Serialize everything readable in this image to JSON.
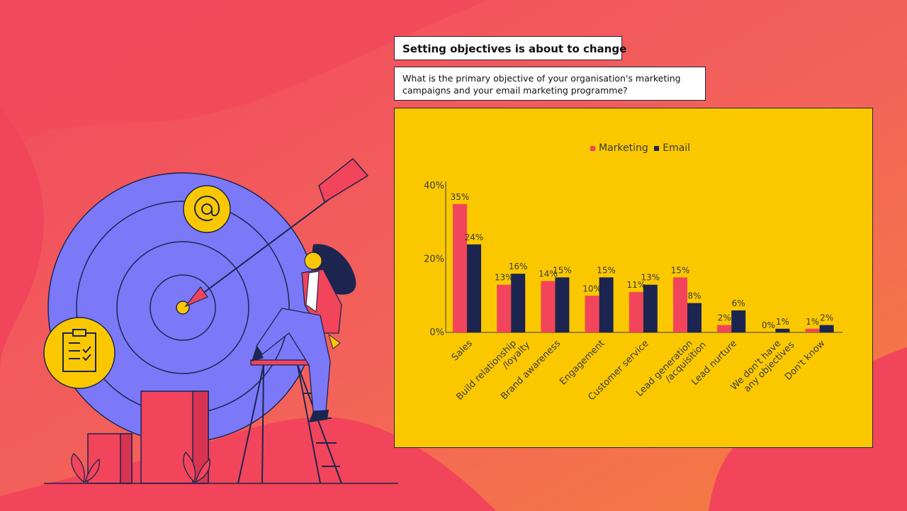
{
  "header": {
    "title": "Setting objectives is about to change",
    "question_line1": "What is the primary objective of your organisation's marketing",
    "question_line2": "campaigns and your email marketing programme?"
  },
  "colors": {
    "background": "#f2445a",
    "panel": "#fbc800",
    "marketing": "#f2445a",
    "email": "#1c2550",
    "target": "#7b79f7"
  },
  "icons": [
    "at-sign-icon",
    "clipboard-checklist-icon",
    "arrow-icon"
  ],
  "chart_data": {
    "type": "bar",
    "title": "",
    "xlabel": "",
    "ylabel": "",
    "ylim": [
      0,
      40
    ],
    "yticks": [
      "0%",
      "20%",
      "40%"
    ],
    "legend_position": "top-center",
    "grid": false,
    "categories": [
      [
        "Sales"
      ],
      [
        "Build relationship",
        "/loyalty"
      ],
      [
        "Brand awareness"
      ],
      [
        "Engagement"
      ],
      [
        "Customer service"
      ],
      [
        "Lead generation",
        "/acquisition"
      ],
      [
        "Lead nurture"
      ],
      [
        "We don't have",
        "any objectives"
      ],
      [
        "Don't know"
      ]
    ],
    "series": [
      {
        "name": "Marketing",
        "values": [
          35,
          13,
          14,
          10,
          11,
          15,
          2,
          0,
          1
        ],
        "labels": [
          "35%",
          "13%",
          "14%",
          "10%",
          "11%",
          "15%",
          "2%",
          "0%",
          "1%"
        ]
      },
      {
        "name": "Email",
        "values": [
          24,
          16,
          15,
          15,
          13,
          8,
          6,
          1,
          2
        ],
        "labels": [
          "24%",
          "16%",
          "15%",
          "15%",
          "13%",
          "8%",
          "6%",
          "1%",
          "2%"
        ]
      }
    ]
  }
}
